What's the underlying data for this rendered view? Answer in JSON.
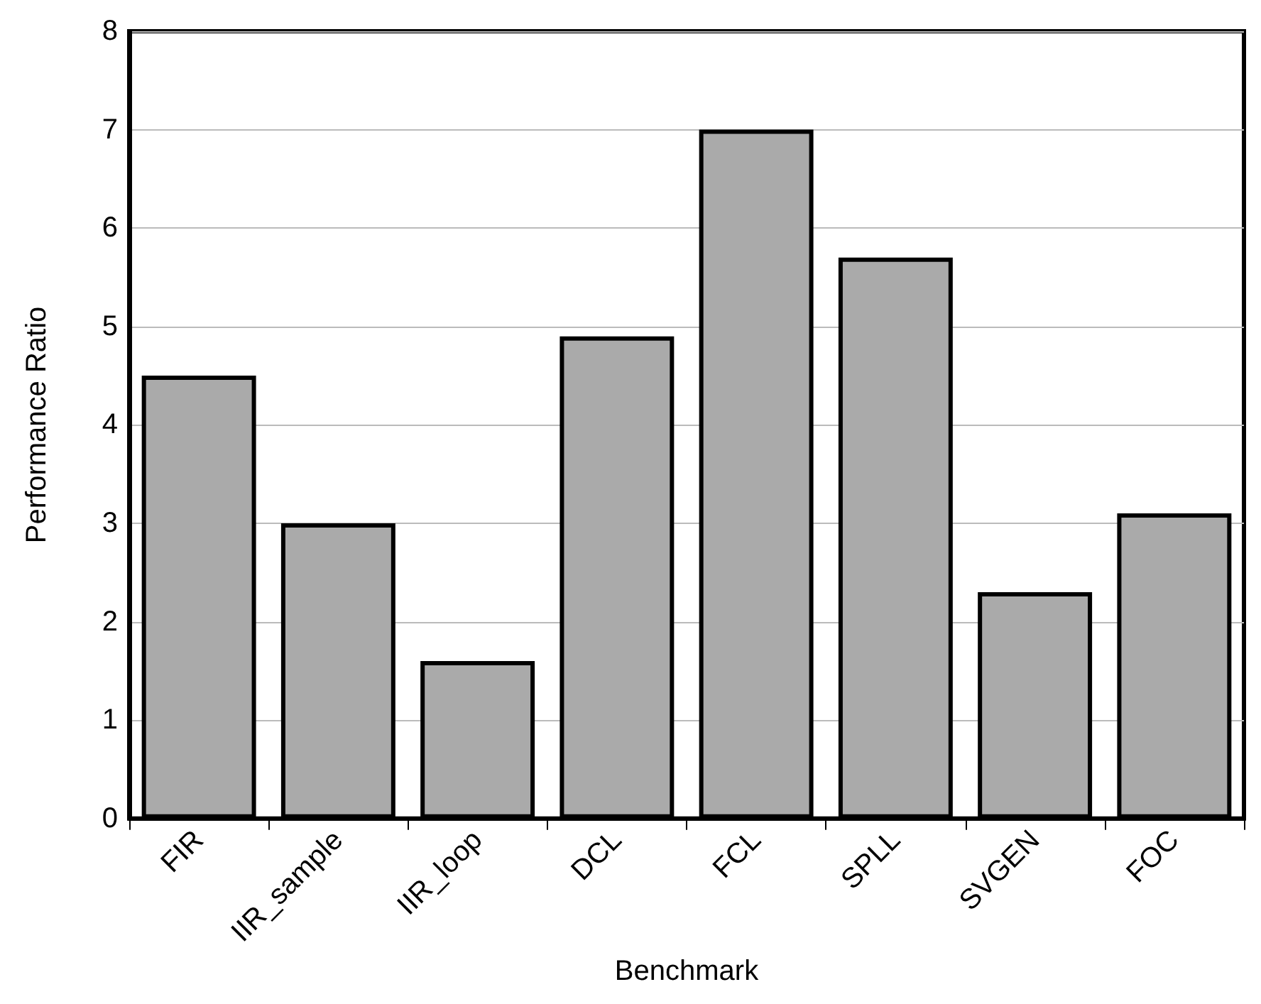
{
  "chart_data": {
    "type": "bar",
    "xlabel": "Benchmark",
    "ylabel": "Performance Ratio",
    "categories": [
      "FIR",
      "IIR_sample",
      "IIR_loop",
      "DCL",
      "FCL",
      "SPLL",
      "SVGEN",
      "FOC"
    ],
    "values": [
      4.5,
      3.0,
      1.6,
      4.9,
      7.0,
      5.7,
      2.3,
      3.1
    ],
    "color": "#aaaaaa",
    "ylim": [
      0,
      8
    ],
    "yticks": [
      0,
      1,
      2,
      3,
      4,
      5,
      6,
      7,
      8
    ],
    "grid": "y"
  }
}
